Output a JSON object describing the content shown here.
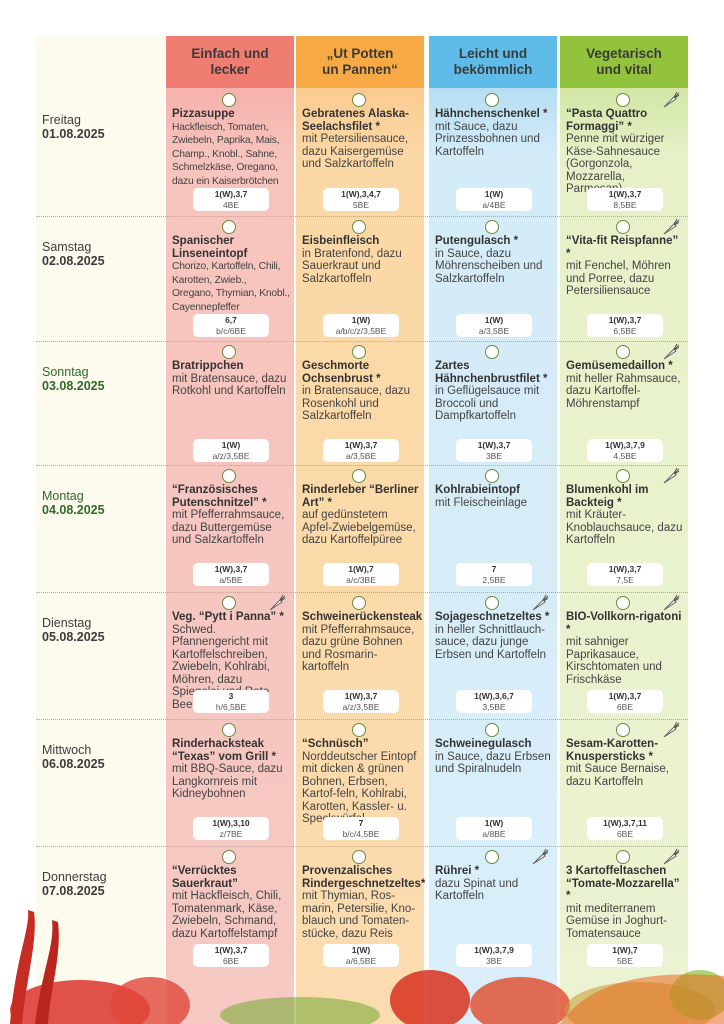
{
  "headers": [
    {
      "line1": "Einfach und",
      "line2": "lecker"
    },
    {
      "line1": "„Ut Potten",
      "line2": "un Pannen“"
    },
    {
      "line1": "Leicht und",
      "line2": "bekömmlich"
    },
    {
      "line1": "Vegetarisch",
      "line2": "und vital"
    }
  ],
  "days": [
    {
      "name": "Freitag",
      "date": "01.08.2025"
    },
    {
      "name": "Samstag",
      "date": "02.08.2025"
    },
    {
      "name": "Sonntag",
      "date": "03.08.2025"
    },
    {
      "name": "Montag",
      "date": "04.08.2025"
    },
    {
      "name": "Dienstag",
      "date": "05.08.2025"
    },
    {
      "name": "Mittwoch",
      "date": "06.08.2025"
    },
    {
      "name": "Donnerstag",
      "date": "07.08.2025"
    }
  ],
  "rows": [
    [
      {
        "title": "Pizzasuppe",
        "desc": "Hackfleisch, Tomaten, Zwiebeln, Paprika, Mais, Champ., Knobl., Sahne, Schmelzkäse, Oregano, dazu ein Kaiserbrötchen",
        "a": "1(W),3,7",
        "b": "4BE"
      },
      {
        "title": "Gebratenes Alaska-Seelachsfilet *",
        "desc": "mit Petersiliensauce, dazu Kaisergemüse und Salzkartoffeln",
        "a": "1(W),3,4,7",
        "b": "5BE"
      },
      {
        "title": "Hähnchenschenkel *",
        "desc": "mit Sauce, dazu Prinzessbohnen und Kartoffeln",
        "a": "1(W)",
        "b": "a/4BE"
      },
      {
        "title": "“Pasta Quattro Formaggi” *",
        "desc": "Penne mit würziger Käse-Sahnesauce (Gorgonzola, Mozzarella, Parmesan)",
        "a": "1(W),3,7",
        "b": "8,5BE"
      }
    ],
    [
      {
        "title": "Spanischer Linseneintopf",
        "desc": "Chorizo, Kartoffeln, Chili, Karotten, Zwieb., Oregano, Thymian, Knobl., Cayennepfeffer",
        "a": "6,7",
        "b": "b/c/6BE"
      },
      {
        "title": "Eisbeinfleisch",
        "desc": "in Bratenfond, dazu Sauerkraut und Salzkartoffeln",
        "a": "1(W)",
        "b": "a/b/c/z/3,5BE"
      },
      {
        "title": "Putengulasch *",
        "desc": "in Sauce, dazu Möhrenscheiben und Salzkartoffeln",
        "a": "1(W)",
        "b": "a/3,5BE"
      },
      {
        "title": "“Vita-fit Reispfanne” *",
        "desc": "mit Fenchel, Möhren und Porree, dazu Petersiliensauce",
        "a": "1(W),3,7",
        "b": "6,5BE"
      }
    ],
    [
      {
        "title": "Bratrippchen",
        "desc": "mit Bratensauce, dazu Rotkohl und Kartoffeln",
        "a": "1(W)",
        "b": "a/z/3,5BE"
      },
      {
        "title": "Geschmorte Ochsenbrust *",
        "desc": "in Bratensauce, dazu Rosenkohl und Salzkartoffeln",
        "a": "1(W),3,7",
        "b": "a/3,5BE"
      },
      {
        "title": "Zartes Hähnchenbrustfilet *",
        "desc": "in Geflügelsauce mit Broccoli und Dampfkartoffeln",
        "a": "1(W),3,7",
        "b": "3BE"
      },
      {
        "title": "Gemüsemedaillon *",
        "desc": "mit heller Rahmsauce, dazu Kartoffel-Möhrenstampf",
        "a": "1(W),3,7,9",
        "b": "4,5BE"
      }
    ],
    [
      {
        "title": "“Französisches Putenschnitzel” *",
        "desc": "mit Pfefferrahmsauce, dazu Buttergemüse und Salzkartoffeln",
        "a": "1(W),3,7",
        "b": "a/5BE"
      },
      {
        "title": "Rinderleber “Berliner Art” *",
        "desc": "auf gedünstetem Apfel-Zwiebelgemüse, dazu Kartoffelpüree",
        "a": "1(W),7",
        "b": "a/c/3BE"
      },
      {
        "title": "Kohlrabieintopf",
        "desc": "mit Fleischeinlage",
        "a": "7",
        "b": "2,5BE"
      },
      {
        "title": "Blumenkohl im Backteig *",
        "desc": "mit Kräuter-Knoblauchsauce, dazu Kartoffeln",
        "a": "1(W),3,7",
        "b": "7,5E"
      }
    ],
    [
      {
        "title": "Veg. “Pytt i Panna” *",
        "desc": "Schwed. Pfannengericht mit Kartoffelschreiben, Zwiebeln, Kohlrabi, Möhren, dazu Spiegelei und Rote Beete",
        "a": "3",
        "b": "h/6,5BE"
      },
      {
        "title": "Schweinerückensteak",
        "desc": "mit Pfefferrahmsauce, dazu grüne Bohnen und Rosmarin-kartoffeln",
        "a": "1(W),3,7",
        "b": "a/z/3,5BE"
      },
      {
        "title": "Sojageschnetzeltes *",
        "desc": "in heller Schnittlauch-sauce, dazu junge Erbsen und Kartoffeln",
        "a": "1(W),3,6,7",
        "b": "3,5BE"
      },
      {
        "title": "BIO-Vollkorn-rigatoni *",
        "desc": "mit sahniger Paprikasauce, Kirschtomaten und Frischkäse",
        "a": "1(W),3,7",
        "b": "6BE"
      }
    ],
    [
      {
        "title": "Rinderhacksteak “Texas” vom Grill *",
        "desc": "mit BBQ-Sauce, dazu Langkornreis mit Kidneybohnen",
        "a": "1(W),3,10",
        "b": "z/7BE"
      },
      {
        "title": "“Schnüsch”",
        "desc": "Norddeutscher Eintopf mit dicken & grünen Bohnen, Erbsen, Kartof-feln, Kohlrabi, Karotten, Kassler- u. Speckwürfel",
        "a": "7",
        "b": "b/c/4,5BE"
      },
      {
        "title": "Schweinegulasch",
        "desc": "in Sauce, dazu Erbsen und Spiralnudeln",
        "a": "1(W)",
        "b": "a/8BE"
      },
      {
        "title": "Sesam-Karotten-Knuspersticks *",
        "desc": "mit Sauce Bernaise, dazu Kartoffeln",
        "a": "1(W),3,7,11",
        "b": "6BE"
      }
    ],
    [
      {
        "title": "“Verrücktes Sauerkraut”",
        "desc": "mit Hackfleisch, Chili, Tomatenmark, Käse, Zwiebeln, Schmand, dazu Kartoffelstampf",
        "a": "1(W),3,7",
        "b": "6BE"
      },
      {
        "title": "Provenzalisches Rindergeschnetzeltes*",
        "desc": "mit Thymian, Ros-marin, Petersilie, Kno-blauch und Tomaten-stücke, dazu Reis",
        "a": "1(W)",
        "b": "a/6,5BE"
      },
      {
        "title": "Rührei *",
        "desc": "dazu Spinat und Kartoffeln",
        "a": "1(W),3,7,9",
        "b": "3BE"
      },
      {
        "title": "3 Kartoffeltaschen “Tomate-Mozzarella” *",
        "desc": "mit mediterranem Gemüse in Joghurt-Tomatensauce",
        "a": "1(W),7",
        "b": "5BE"
      }
    ]
  ]
}
